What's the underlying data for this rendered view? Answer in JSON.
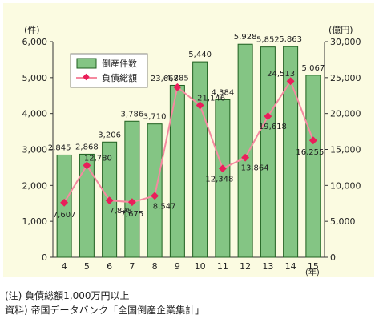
{
  "chart_data": {
    "type": "bar+line",
    "categories": [
      "4",
      "5",
      "6",
      "7",
      "8",
      "9",
      "10",
      "11",
      "12",
      "13",
      "14",
      "15"
    ],
    "series": [
      {
        "name": "倒産件数",
        "type": "bar",
        "axis": "left",
        "values": [
          2845,
          2868,
          3206,
          3786,
          3710,
          4785,
          5440,
          4384,
          5928,
          5852,
          5863,
          5067
        ],
        "labels": [
          "2,845",
          "2,868",
          "3,206",
          "3,786",
          "3,710",
          "4,785",
          "5,440",
          "4,384",
          "5,928",
          "5,852",
          "5,863",
          "5,067"
        ]
      },
      {
        "name": "負債総額",
        "type": "line",
        "axis": "right",
        "values": [
          7607,
          12780,
          7898,
          7675,
          8547,
          23668,
          21146,
          12348,
          13864,
          19618,
          24513,
          16255
        ],
        "labels": [
          "7,607",
          "12,780",
          "7,898",
          "7,675",
          "8,547",
          "23,668",
          "21,146",
          "12,348",
          "13,864",
          "19,618",
          "24,513",
          "16,255"
        ]
      }
    ],
    "y_left": {
      "unit": "(件)",
      "ylim": [
        0,
        6000
      ],
      "ticks": [
        0,
        1000,
        2000,
        3000,
        4000,
        5000,
        6000
      ],
      "tick_labels": [
        "0",
        "1,000",
        "2,000",
        "3,000",
        "4,000",
        "5,000",
        "6,000"
      ]
    },
    "y_right": {
      "unit": "(億円)",
      "ylim": [
        0,
        30000
      ],
      "ticks": [
        0,
        5000,
        10000,
        15000,
        20000,
        25000,
        30000
      ],
      "tick_labels": [
        "0",
        "5,000",
        "10,000",
        "15,000",
        "20,000",
        "25,000",
        "30,000"
      ]
    },
    "x_unit": "(年)",
    "grid": false,
    "legend": "top-left",
    "colors": {
      "bar": "#84c584",
      "bar_stroke": "#1f5f1f",
      "line": "#f58aa0",
      "marker": "#ea1e5a",
      "background": "#fbfbe1"
    }
  },
  "footnotes": {
    "note": "(注) 負債総額1,000万円以上",
    "source": "資料) 帝国データバンク「全国倒産企業集計」"
  }
}
